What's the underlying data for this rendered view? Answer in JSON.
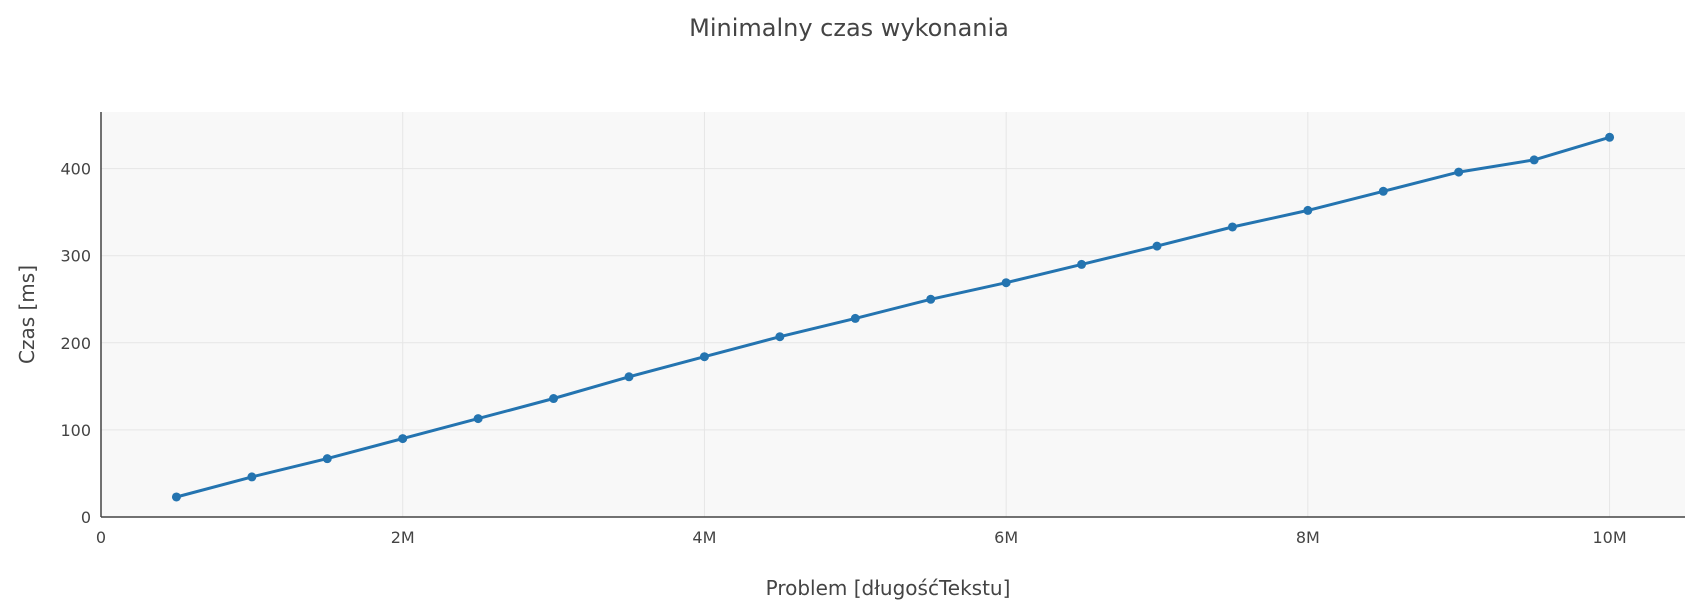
{
  "chart_data": {
    "type": "line",
    "title": "Minimalny czas wykonania",
    "xlabel": "Problem [długośćTekstu]",
    "ylabel": "Czas [ms]",
    "xlim": [
      0,
      10500000
    ],
    "ylim": [
      0,
      465
    ],
    "x_ticks": [
      {
        "value": 0,
        "label": "0"
      },
      {
        "value": 2000000,
        "label": "2M"
      },
      {
        "value": 4000000,
        "label": "4M"
      },
      {
        "value": 6000000,
        "label": "6M"
      },
      {
        "value": 8000000,
        "label": "8M"
      },
      {
        "value": 10000000,
        "label": "10M"
      }
    ],
    "y_ticks": [
      {
        "value": 0,
        "label": "0"
      },
      {
        "value": 100,
        "label": "100"
      },
      {
        "value": 200,
        "label": "200"
      },
      {
        "value": 300,
        "label": "300"
      },
      {
        "value": 400,
        "label": "400"
      }
    ],
    "grid": true,
    "plot_background": "#f8f8f8",
    "series": [
      {
        "name": "Minimalny czas wykonania",
        "color": "#2474b0",
        "x": [
          500000,
          1000000,
          1500000,
          2000000,
          2500000,
          3000000,
          3500000,
          4000000,
          4500000,
          5000000,
          5500000,
          6000000,
          6500000,
          7000000,
          7500000,
          8000000,
          8500000,
          9000000,
          9500000,
          10000000
        ],
        "values": [
          23,
          46,
          67,
          90,
          113,
          136,
          161,
          184,
          207,
          228,
          250,
          269,
          290,
          311,
          333,
          352,
          374,
          396,
          410,
          436
        ]
      }
    ]
  }
}
